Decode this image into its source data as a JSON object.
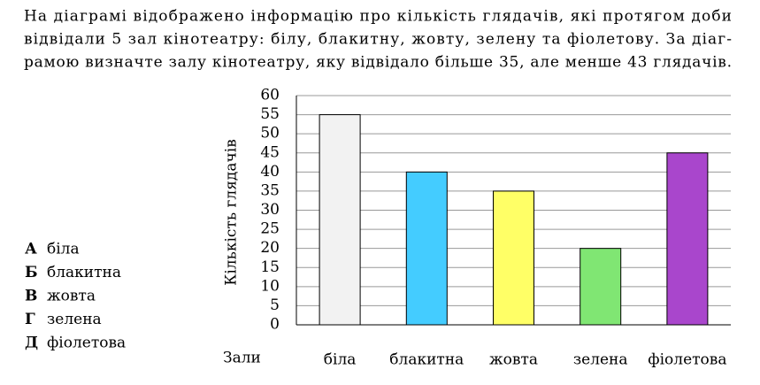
{
  "question": [
    "На діаграмі відображено інформацію про кількість глядачів, які протягом доби",
    "відвідали 5 зал кінотеатру: білу, блакитну, жовту, зелену та фіолетову. За діаг-",
    "рамою визначте залу кінотеатру, яку відвідало більше 35, але менше 43 глядачів."
  ],
  "options": [
    {
      "letter": "А",
      "text": "біла"
    },
    {
      "letter": "Б",
      "text": "блакитна"
    },
    {
      "letter": "В",
      "text": "жовта"
    },
    {
      "letter": "Г",
      "text": "зелена"
    },
    {
      "letter": "Д",
      "text": "фіолетова"
    }
  ],
  "chart_data": {
    "type": "bar",
    "y_label": "Кількість глядачів",
    "x_label": "Зали",
    "categories": [
      "біла",
      "блакитна",
      "жовта",
      "зелена",
      "фіолетова"
    ],
    "values": [
      55,
      40,
      35,
      20,
      45
    ],
    "colors": [
      "#f2f2f2",
      "#44ccff",
      "#ffff66",
      "#80e673",
      "#a946cc"
    ],
    "ylim": [
      0,
      60
    ],
    "yticks": [
      0,
      5,
      10,
      15,
      20,
      25,
      30,
      35,
      40,
      45,
      50,
      55,
      60
    ],
    "grid": true
  }
}
